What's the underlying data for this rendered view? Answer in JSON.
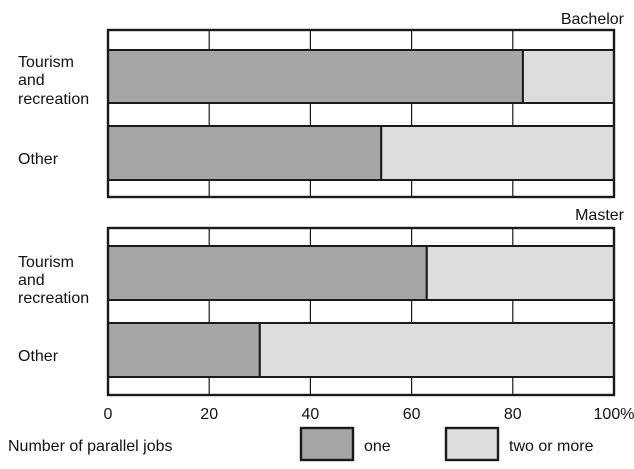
{
  "chart_data": [
    {
      "type": "bar",
      "stacked": true,
      "orientation": "horizontal",
      "panel_label": "Bachelor",
      "categories": [
        [
          "Tourism",
          "and",
          "recreation"
        ],
        [
          "Other"
        ]
      ],
      "series": [
        {
          "name": "one",
          "values": [
            82,
            54
          ]
        },
        {
          "name": "two or more",
          "values": [
            18,
            46
          ]
        }
      ],
      "xlim": [
        0,
        100
      ],
      "grid": true
    },
    {
      "type": "bar",
      "stacked": true,
      "orientation": "horizontal",
      "panel_label": "Master",
      "categories": [
        [
          "Tourism",
          "and",
          "recreation"
        ],
        [
          "Other"
        ]
      ],
      "series": [
        {
          "name": "one",
          "values": [
            63,
            30
          ]
        },
        {
          "name": "two or more",
          "values": [
            37,
            70
          ]
        }
      ],
      "xlim": [
        0,
        100
      ],
      "grid": true
    }
  ],
  "x_ticks": [
    "0",
    "20",
    "40",
    "60",
    "80",
    "100%"
  ],
  "x_tick_values": [
    0,
    20,
    40,
    60,
    80,
    100
  ],
  "legend": {
    "title": "Number of parallel jobs",
    "placement": "bottom",
    "items": [
      {
        "name": "one",
        "color": "#a6a6a6"
      },
      {
        "name": "two or more",
        "color": "#dcdcdc"
      }
    ]
  },
  "colors": {
    "one": "#a6a6a6",
    "two_or_more": "#dcdcdc",
    "frame": "#1a1a1a"
  }
}
